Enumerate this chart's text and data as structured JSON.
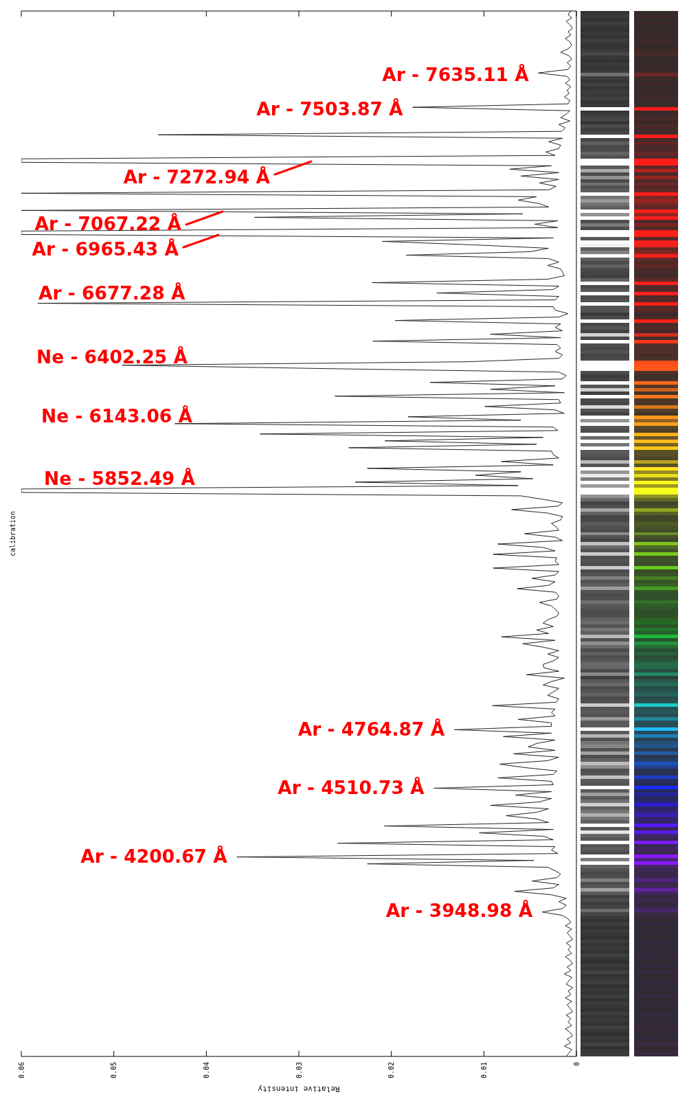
{
  "chart_data": {
    "type": "line",
    "orientation": "horizontal",
    "ylabel": "calibration",
    "xlabel": "Relative intensity",
    "tick_labels": "x",
    "categories": [
      null,
      null,
      null,
      null,
      null,
      null,
      null,
      null,
      null,
      null,
      null,
      null,
      null,
      null,
      null,
      null,
      null,
      null,
      null,
      null,
      null,
      null,
      null,
      null,
      null,
      null,
      null,
      null,
      null,
      null,
      null,
      null,
      null,
      null,
      null,
      null,
      null,
      null,
      null,
      null,
      null,
      null,
      null,
      null,
      null,
      null,
      null,
      null,
      null,
      null,
      null,
      null,
      null,
      null,
      null,
      null,
      null,
      null,
      null,
      null,
      null,
      null,
      null,
      null,
      null,
      null,
      null,
      null,
      null,
      null,
      null,
      null,
      null,
      null,
      null,
      null,
      null,
      null,
      null,
      null,
      null,
      null,
      null,
      null,
      null,
      null,
      null,
      null,
      null,
      null,
      null,
      null,
      null,
      null,
      null,
      null,
      null,
      null,
      null,
      null,
      null,
      null,
      null,
      null,
      null,
      null,
      null,
      null,
      null,
      null,
      null,
      null,
      null,
      null,
      null,
      null,
      null,
      null,
      null,
      null,
      null,
      null,
      null,
      null,
      null,
      null,
      null,
      null,
      null,
      null,
      null,
      null,
      null,
      null,
      null,
      null,
      null,
      null,
      null,
      null,
      null,
      null,
      null,
      null,
      null,
      null,
      null,
      null,
      null,
      null,
      null,
      null,
      null,
      null,
      null,
      null,
      null,
      null,
      null,
      null,
      null,
      null,
      null,
      null,
      null,
      null,
      null,
      null,
      null,
      null,
      null,
      null,
      null,
      null,
      null,
      null,
      null,
      null,
      null,
      null,
      null,
      null,
      null,
      null,
      null,
      null,
      null,
      null,
      null,
      null,
      null,
      null,
      null,
      null,
      null,
      null,
      null,
      null,
      null,
      null,
      null,
      null,
      null,
      null,
      null,
      null,
      null,
      null,
      null,
      null,
      null,
      null,
      null,
      null,
      null,
      null,
      null,
      null,
      null,
      null,
      null,
      null,
      null,
      null,
      null,
      null,
      null,
      null,
      null,
      null,
      null,
      null,
      null,
      null,
      null,
      null,
      null,
      null,
      null,
      null,
      null,
      null,
      null,
      null,
      null,
      null,
      null,
      null,
      null,
      null,
      null,
      null,
      null,
      null,
      null,
      null,
      null,
      null,
      null,
      null,
      null,
      null,
      null,
      null,
      null,
      null,
      null,
      null,
      null,
      null,
      null,
      null,
      null,
      null,
      null,
      null,
      null,
      null,
      null,
      null,
      null,
      null,
      null,
      null,
      null,
      null,
      null,
      null,
      null,
      null,
      null,
      null,
      null,
      null,
      null,
      null,
      null,
      null,
      null,
      null,
      null,
      null,
      null,
      null,
      null
    ],
    "color": "#222222",
    "values": [
      0.0006,
      0.0009,
      0.0005,
      0.0011,
      0.0007,
      0.0004,
      0.0009,
      0.0006,
      0.0012,
      0.0007,
      0.0005,
      0.0009,
      0.0017,
      0.0008,
      0.0005,
      0.001,
      0.0006,
      0.0009,
      0.0041,
      0.001,
      0.0007,
      0.0012,
      0.0006,
      0.001,
      0.0008,
      0.0013,
      0.0007,
      0.0009,
      0.0177,
      0.0007,
      0.0011,
      0.0017,
      0.0007,
      0.0019,
      0.0012,
      0.0016,
      0.0452,
      0.0015,
      0.003,
      0.0017,
      0.0019,
      0.0033,
      0.0023,
      0.06,
      0.06,
      0.0027,
      0.0072,
      0.0019,
      0.006,
      0.0019,
      0.004,
      0.0022,
      0.003,
      0.06,
      0.0043,
      0.0063,
      0.004,
      0.003,
      0.06,
      0.0058,
      0.0348,
      0.002,
      0.0045,
      0.002,
      0.06,
      0.06,
      0.0025,
      0.021,
      0.0112,
      0.003,
      0.005,
      0.0184,
      0.003,
      0.0019,
      0.0031,
      0.0017,
      0.0015,
      0.0013,
      0.0031,
      0.0221,
      0.0019,
      0.0025,
      0.0151,
      0.0019,
      0.0023,
      0.0582,
      0.0025,
      0.0023,
      0.0009,
      0.0019,
      0.0196,
      0.0017,
      0.0023,
      0.0015,
      0.0093,
      0.0017,
      0.022,
      0.0021,
      0.0017,
      0.0023,
      0.0015,
      0.0019,
      0.0117,
      0.0491,
      0.0269,
      0.0019,
      0.0011,
      0.0015,
      0.0158,
      0.0023,
      0.0093,
      0.0013,
      0.0261,
      0.0019,
      0.0017,
      0.0099,
      0.0023,
      0.0013,
      0.0182,
      0.006,
      0.0434,
      0.0025,
      0.002,
      0.0342,
      0.0036,
      0.0207,
      0.0043,
      0.0246,
      0.0027,
      0.0025,
      0.0019,
      0.0081,
      0.0025,
      0.0226,
      0.006,
      0.0109,
      0.0047,
      0.0239,
      0.0063,
      0.06,
      0.06,
      0.006,
      0.0036,
      0.0015,
      0.002,
      0.007,
      0.0031,
      0.0015,
      0.0017,
      0.0027,
      0.0022,
      0.0019,
      0.0056,
      0.0023,
      0.0015,
      0.0085,
      0.0036,
      0.0023,
      0.009,
      0.0021,
      0.0023,
      0.0019,
      0.009,
      0.0019,
      0.0023,
      0.0048,
      0.0023,
      0.003,
      0.0064,
      0.0023,
      0.0019,
      0.0021,
      0.004,
      0.0027,
      0.0023,
      0.0019,
      0.0021,
      0.0031,
      0.0036,
      0.0025,
      0.0043,
      0.003,
      0.0081,
      0.0023,
      0.0058,
      0.0036,
      0.0019,
      0.0031,
      0.0019,
      0.0025,
      0.0036,
      0.0035,
      0.0019,
      0.0054,
      0.0013,
      0.0027,
      0.0036,
      0.0019,
      0.0025,
      0.0031,
      0.0019,
      0.0022,
      0.0091,
      0.0023,
      0.0027,
      0.0023,
      0.0063,
      0.0027,
      0.0027,
      0.0132,
      0.0027,
      0.0079,
      0.0023,
      0.0043,
      0.0052,
      0.0023,
      0.0068,
      0.0019,
      0.0031,
      0.0083,
      0.0056,
      0.0021,
      0.0025,
      0.0085,
      0.0027,
      0.0025,
      0.0154,
      0.0027,
      0.0066,
      0.0027,
      0.004,
      0.0093,
      0.003,
      0.0043,
      0.0076,
      0.0042,
      0.003,
      0.0208,
      0.0025,
      0.0105,
      0.0035,
      0.0025,
      0.0258,
      0.0023,
      0.0027,
      0.002,
      0.0367,
      0.0046,
      0.0226,
      0.0031,
      0.0023,
      0.0017,
      0.0021,
      0.0048,
      0.0019,
      0.0025,
      0.0067,
      0.0027,
      0.0011,
      0.0019,
      0.0011,
      0.0015,
      0.0037,
      0.0015,
      0.0009,
      0.0006,
      0.0012,
      0.0005,
      0.001,
      0.0007,
      0.0004,
      0.0011,
      0.0006,
      0.0009,
      0.0005,
      0.0012,
      0.0007,
      0.0004,
      0.001,
      0.0006,
      0.0013,
      0.0005,
      0.0008,
      0.0011,
      0.0004,
      0.0009,
      0.0006,
      0.0012,
      0.0005,
      0.001,
      0.0007,
      0.0004,
      0.0011,
      0.0006,
      0.0009,
      0.0005,
      0.0012,
      0.0007,
      0.0004,
      0.001,
      0.0006,
      0.0013,
      0.0005,
      0.0008,
      0.0011
    ],
    "xlim": [
      0.06,
      0
    ],
    "xticks": [
      0,
      0.01,
      0.02,
      0.03,
      0.04,
      0.05,
      0.06
    ],
    "annotations": [
      {
        "text": "Ar - 7635.11 Å",
        "x": 0.0041
      },
      {
        "text": "Ar - 7503.87 Å",
        "x": 0.0177
      },
      "Ar - 7272.94 Å",
      "Ar - 7067.22 Å",
      "Ar - 6965.43 Å",
      "Ar - 6677.28 Å",
      "Ne - 6402.25 Å",
      "Ne - 6143.06 Å",
      "Ne - 5852.49 Å",
      {
        "text": "Ar - 4764.87 Å",
        "x": 0.0132
      },
      {
        "text": "Ar - 4510.73 Å",
        "x": 0.0154
      },
      {
        "text": "Ar - 4200.67 Å",
        "x": 0.0367
      },
      {
        "text": "Ar - 3948.98 Å",
        "x": 0.0037
      }
    ]
  }
}
